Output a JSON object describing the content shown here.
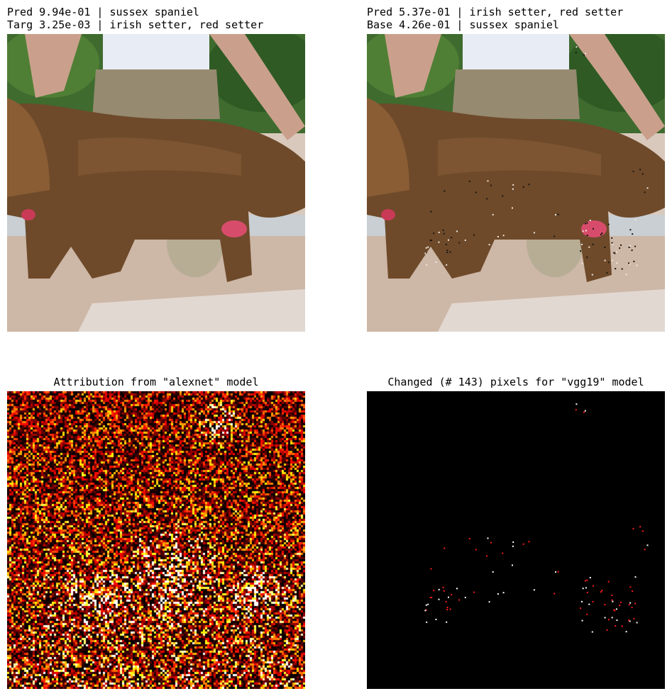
{
  "top_left": {
    "line1": "Pred 9.94e-01 | sussex spaniel",
    "line2": "Targ 3.25e-03 | irish setter, red setter"
  },
  "top_right": {
    "line1": "Pred 5.37e-01 | irish setter, red setter",
    "line2": "Base 4.26e-01 | sussex spaniel"
  },
  "bottom_left": {
    "title": "Attribution from \"alexnet\" model"
  },
  "bottom_right": {
    "title": "Changed (# 143) pixels for \"vgg19\" model"
  }
}
